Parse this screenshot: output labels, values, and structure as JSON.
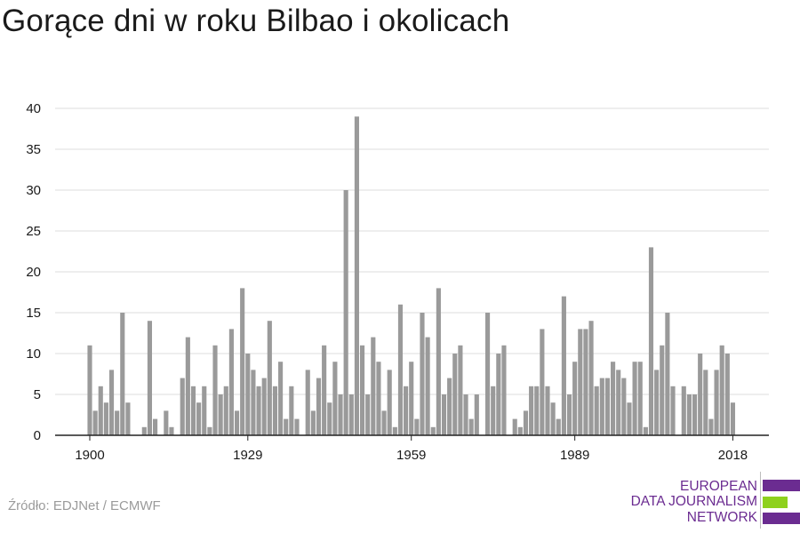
{
  "title": "Gorące dni w roku Bilbao i okolicach",
  "source": "Źródło: EDJNet / ECMWF",
  "logo": {
    "lines": [
      "EUROPEAN",
      "DATA JOURNALISM",
      "NETWORK"
    ],
    "colors": {
      "purple": "#6b2c91",
      "green": "#8ed11e"
    }
  },
  "colors": {
    "bar": "#9a9a9a",
    "grid": "#dedede",
    "axis": "#222222",
    "text": "#1a1a1a"
  },
  "chart_data": {
    "type": "bar",
    "title": "Gorące dni w roku Bilbao i okolicach",
    "xlabel": "",
    "ylabel": "",
    "x_ticks": [
      1900,
      1929,
      1959,
      1989,
      2018
    ],
    "y_ticks": [
      0,
      5,
      10,
      15,
      20,
      25,
      30,
      35,
      40
    ],
    "ylim": [
      0,
      40
    ],
    "grid": true,
    "series": [
      {
        "x": [
          1900,
          1901,
          1902,
          1903,
          1904,
          1905,
          1906,
          1907,
          1908,
          1909,
          1910,
          1911,
          1912,
          1913,
          1914,
          1915,
          1916,
          1917,
          1918,
          1919,
          1920,
          1921,
          1922,
          1923,
          1924,
          1925,
          1926,
          1927,
          1928,
          1929,
          1930,
          1931,
          1932,
          1933,
          1934,
          1935,
          1936,
          1937,
          1938,
          1939,
          1940,
          1941,
          1942,
          1943,
          1944,
          1945,
          1946,
          1947,
          1948,
          1949,
          1950,
          1951,
          1952,
          1953,
          1954,
          1955,
          1956,
          1957,
          1958,
          1959,
          1960,
          1961,
          1962,
          1963,
          1964,
          1965,
          1966,
          1967,
          1968,
          1969,
          1970,
          1971,
          1972,
          1973,
          1974,
          1975,
          1976,
          1977,
          1978,
          1979,
          1980,
          1981,
          1982,
          1983,
          1984,
          1985,
          1986,
          1987,
          1988,
          1989,
          1990,
          1991,
          1992,
          1993,
          1994,
          1995,
          1996,
          1997,
          1998,
          1999,
          2000,
          2001,
          2002,
          2003,
          2004,
          2005,
          2006,
          2007,
          2008,
          2009,
          2010,
          2011,
          2012,
          2013,
          2014,
          2015,
          2016,
          2017,
          2018
        ],
        "values": [
          11,
          3,
          6,
          4,
          8,
          3,
          15,
          4,
          0,
          0,
          1,
          14,
          2,
          0,
          3,
          1,
          0,
          7,
          12,
          6,
          4,
          6,
          1,
          11,
          5,
          6,
          13,
          3,
          18,
          10,
          8,
          6,
          7,
          14,
          6,
          9,
          2,
          6,
          2,
          0,
          8,
          3,
          7,
          11,
          4,
          9,
          5,
          30,
          5,
          39,
          11,
          5,
          12,
          9,
          3,
          8,
          1,
          16,
          6,
          9,
          2,
          15,
          12,
          1,
          18,
          5,
          7,
          10,
          11,
          5,
          2,
          5,
          0,
          15,
          6,
          10,
          11,
          0,
          2,
          1,
          3,
          6,
          6,
          13,
          6,
          4,
          2,
          17,
          5,
          9,
          13,
          13,
          14,
          6,
          7,
          7,
          9,
          8,
          7,
          4,
          9,
          9,
          1,
          23,
          8,
          11,
          15,
          6,
          0,
          6,
          5,
          5,
          10,
          8,
          2,
          8,
          11,
          10,
          4
        ]
      }
    ]
  }
}
